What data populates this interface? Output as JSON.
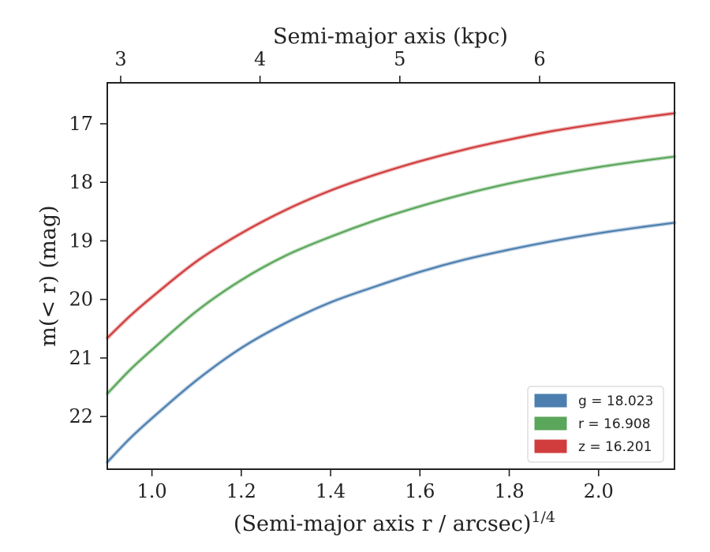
{
  "chart_data": {
    "type": "line",
    "title": "",
    "xlabel": "(Semi-major axis r / arcsec)",
    "xlabel_exponent": "1/4",
    "ylabel": "m(< r) (mag)",
    "top_xlabel": "Semi-major axis (kpc)",
    "xlim": [
      0.9,
      2.17
    ],
    "ylim": [
      22.9,
      16.3
    ],
    "y_inverted": true,
    "grid": false,
    "legend_position": "bottom-right",
    "x_ticks": [
      1.0,
      1.2,
      1.4,
      1.6,
      1.8,
      2.0
    ],
    "x_tick_labels": [
      "1.0",
      "1.2",
      "1.4",
      "1.6",
      "1.8",
      "2.0"
    ],
    "y_ticks": [
      17,
      18,
      19,
      20,
      21,
      22
    ],
    "y_tick_labels": [
      "17",
      "18",
      "19",
      "20",
      "21",
      "22"
    ],
    "top_ticks": [
      3,
      4,
      5,
      6
    ],
    "top_tick_labels": [
      "3",
      "4",
      "5",
      "6"
    ],
    "top_tick_x": [
      0.93,
      1.242,
      1.555,
      1.868
    ],
    "x": [
      0.9,
      0.95,
      1.0,
      1.1,
      1.2,
      1.3,
      1.4,
      1.5,
      1.6,
      1.7,
      1.8,
      1.9,
      2.0,
      2.1,
      2.17
    ],
    "series": [
      {
        "name": "g = 18.023",
        "color": "#4c7fb0",
        "values": [
          22.78,
          22.38,
          22.03,
          21.38,
          20.83,
          20.4,
          20.05,
          19.78,
          19.53,
          19.32,
          19.15,
          19.0,
          18.87,
          18.76,
          18.69
        ]
      },
      {
        "name": "r = 16.908",
        "color": "#5aa65a",
        "values": [
          21.61,
          21.21,
          20.86,
          20.2,
          19.67,
          19.25,
          18.93,
          18.65,
          18.41,
          18.2,
          18.02,
          17.87,
          17.74,
          17.63,
          17.56
        ]
      },
      {
        "name": "z = 16.201",
        "color": "#d13d3d",
        "values": [
          20.66,
          20.29,
          19.96,
          19.35,
          18.87,
          18.47,
          18.14,
          17.87,
          17.64,
          17.44,
          17.27,
          17.12,
          17.0,
          16.89,
          16.82
        ]
      }
    ]
  }
}
